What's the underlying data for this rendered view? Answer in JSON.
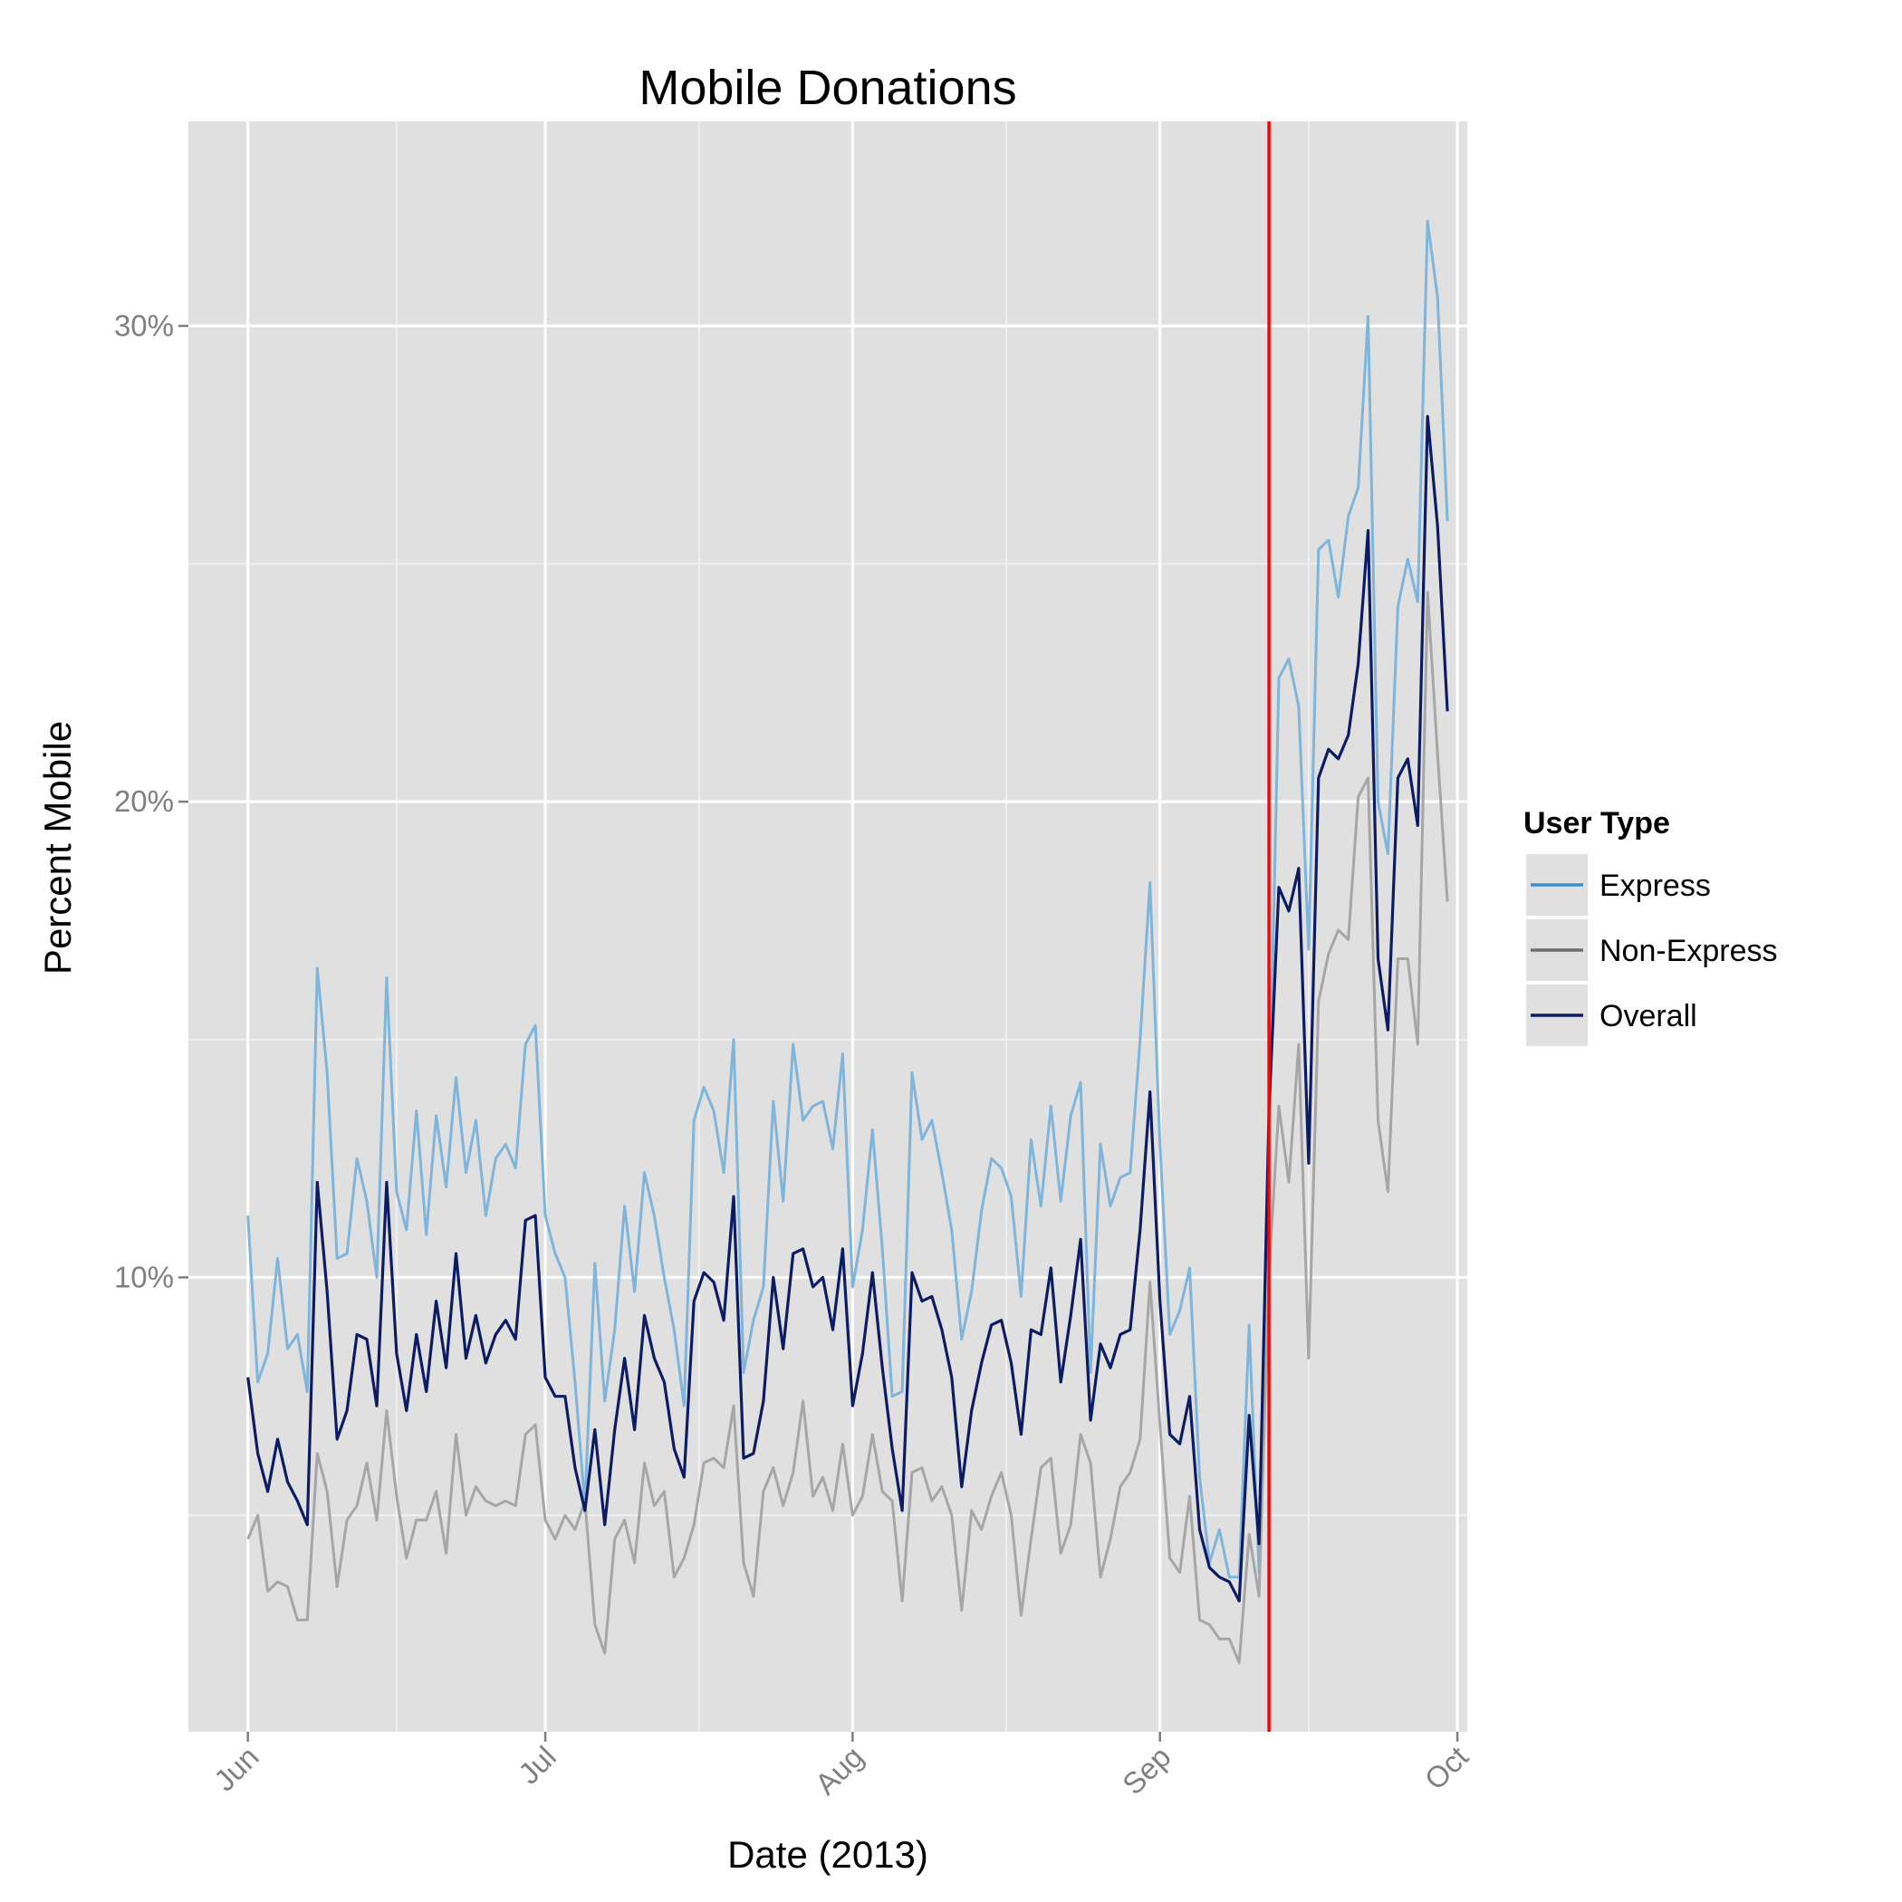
{
  "chart_data": {
    "type": "line",
    "title": "Mobile Donations",
    "xlabel": "Date (2013)",
    "ylabel": "Percent Mobile",
    "x_ticks": [
      {
        "date": "2013-06-01",
        "label": "Jun"
      },
      {
        "date": "2013-07-01",
        "label": "Jul"
      },
      {
        "date": "2013-08-01",
        "label": "Aug"
      },
      {
        "date": "2013-09-01",
        "label": "Sep"
      },
      {
        "date": "2013-10-01",
        "label": "Oct"
      }
    ],
    "y_ticks": [
      {
        "value": 10,
        "label": "10%"
      },
      {
        "value": 20,
        "label": "20%"
      },
      {
        "value": 30,
        "label": "30%"
      }
    ],
    "xlim": [
      "2013-05-26",
      "2013-10-02"
    ],
    "ylim": [
      0.45,
      34.3
    ],
    "grid": true,
    "legend": {
      "title": "User Type",
      "position": "right"
    },
    "x_start": "2013-06-01",
    "marker_line": {
      "date": "2013-09-12",
      "color": "#ff0000"
    },
    "series": [
      {
        "name": "Express",
        "color": "#3c8fcf",
        "line_color": "#7fb4db",
        "values": [
          11.3,
          7.8,
          8.4,
          10.4,
          8.5,
          8.8,
          7.6,
          16.5,
          14.3,
          10.4,
          10.5,
          12.5,
          11.6,
          10.0,
          16.3,
          11.8,
          11.0,
          13.5,
          10.9,
          13.4,
          11.9,
          14.2,
          12.2,
          13.3,
          11.3,
          12.5,
          12.8,
          12.3,
          14.9,
          15.3,
          11.3,
          10.5,
          10.0,
          7.8,
          5.2,
          10.3,
          7.4,
          8.9,
          11.5,
          9.7,
          12.2,
          11.3,
          10.0,
          8.9,
          7.3,
          13.3,
          14.0,
          13.5,
          12.2,
          15.0,
          8.0,
          9.1,
          9.8,
          13.7,
          11.6,
          14.9,
          13.3,
          13.6,
          13.7,
          12.7,
          14.7,
          9.8,
          11.0,
          13.1,
          10.6,
          7.5,
          7.6,
          14.3,
          12.9,
          13.3,
          12.2,
          11.0,
          8.7,
          9.7,
          11.4,
          12.5,
          12.3,
          11.7,
          9.6,
          12.9,
          11.5,
          13.6,
          11.6,
          13.4,
          14.1,
          8.0,
          12.8,
          11.5,
          12.1,
          12.2,
          15.0,
          18.3,
          12.8,
          8.8,
          9.3,
          10.2,
          5.8,
          4.0,
          4.7,
          3.7,
          3.7,
          9.0,
          3.8,
          13.0,
          22.6,
          23.0,
          22.0,
          16.9,
          25.3,
          25.5,
          24.3,
          26.0,
          26.6,
          30.2,
          20.0,
          18.9,
          24.1,
          25.1,
          24.2,
          32.2,
          30.6,
          25.9
        ]
      },
      {
        "name": "Non-Express",
        "color": "#6e6e6e",
        "line_color": "#a6a6a6",
        "values": [
          4.5,
          5.0,
          3.4,
          3.6,
          3.5,
          2.8,
          2.8,
          6.3,
          5.5,
          3.5,
          4.9,
          5.2,
          6.1,
          4.9,
          7.2,
          5.4,
          4.1,
          4.9,
          4.9,
          5.5,
          4.2,
          6.7,
          5.0,
          5.6,
          5.3,
          5.2,
          5.3,
          5.2,
          6.7,
          6.9,
          4.9,
          4.5,
          5.0,
          4.7,
          5.3,
          2.7,
          2.1,
          4.5,
          4.9,
          4.0,
          6.1,
          5.2,
          5.5,
          3.7,
          4.1,
          4.8,
          6.1,
          6.2,
          6.0,
          7.3,
          4.0,
          3.3,
          5.5,
          6.0,
          5.2,
          5.9,
          7.4,
          5.4,
          5.8,
          5.1,
          6.5,
          5.0,
          5.4,
          6.7,
          5.5,
          5.3,
          3.2,
          5.9,
          6.0,
          5.3,
          5.6,
          5.0,
          3.0,
          5.1,
          4.7,
          5.4,
          5.9,
          5.0,
          2.9,
          4.5,
          6.0,
          6.2,
          4.2,
          4.8,
          6.7,
          6.1,
          3.7,
          4.5,
          5.6,
          5.9,
          6.6,
          9.9,
          6.9,
          4.1,
          3.8,
          5.4,
          2.8,
          2.7,
          2.4,
          2.4,
          1.9,
          4.6,
          3.3,
          10.1,
          13.6,
          12.0,
          14.9,
          8.3,
          15.8,
          16.8,
          17.3,
          17.1,
          20.1,
          20.5,
          13.3,
          11.8,
          16.7,
          16.7,
          14.9,
          24.4,
          21.0,
          17.9
        ]
      },
      {
        "name": "Overall",
        "color": "#0d1b63",
        "line_color": "#0d1b63",
        "values": [
          7.9,
          6.3,
          5.5,
          6.6,
          5.7,
          5.3,
          4.8,
          12.0,
          9.7,
          6.6,
          7.2,
          8.8,
          8.7,
          7.3,
          12.0,
          8.4,
          7.2,
          8.8,
          7.6,
          9.5,
          8.1,
          10.5,
          8.3,
          9.2,
          8.2,
          8.8,
          9.1,
          8.7,
          11.2,
          11.3,
          7.9,
          7.5,
          7.5,
          6.0,
          5.1,
          6.8,
          4.8,
          6.8,
          8.3,
          6.8,
          9.2,
          8.3,
          7.8,
          6.4,
          5.8,
          9.5,
          10.1,
          9.9,
          9.1,
          11.7,
          6.2,
          6.3,
          7.4,
          10.0,
          8.5,
          10.5,
          10.6,
          9.8,
          10.0,
          8.9,
          10.6,
          7.3,
          8.4,
          10.1,
          8.1,
          6.4,
          5.1,
          10.1,
          9.5,
          9.6,
          8.9,
          7.9,
          5.6,
          7.2,
          8.2,
          9.0,
          9.1,
          8.2,
          6.7,
          8.9,
          8.8,
          10.2,
          7.8,
          9.2,
          10.8,
          7.0,
          8.6,
          8.1,
          8.8,
          8.9,
          11.0,
          13.9,
          9.5,
          6.7,
          6.5,
          7.5,
          4.7,
          3.9,
          3.7,
          3.6,
          3.2,
          7.1,
          4.4,
          13.5,
          18.2,
          17.7,
          18.6,
          12.4,
          20.5,
          21.1,
          20.9,
          21.4,
          22.9,
          25.7,
          16.7,
          15.2,
          20.5,
          20.9,
          19.5,
          28.1,
          25.8,
          21.9
        ]
      }
    ]
  }
}
